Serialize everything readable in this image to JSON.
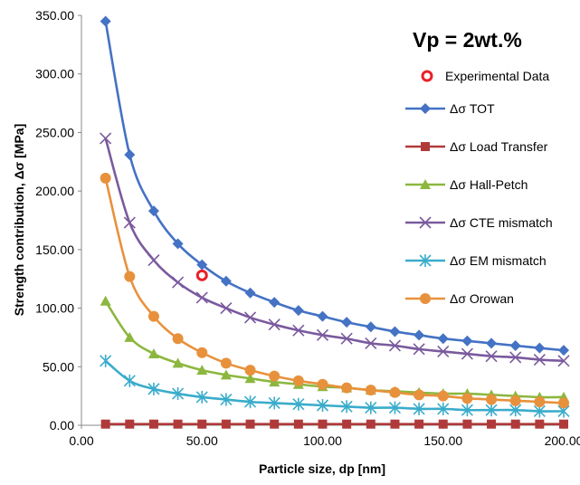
{
  "chart_data": {
    "type": "line",
    "annotation": "Vp = 2wt.%",
    "xlabel": "Particle size, dp [nm]",
    "ylabel": "Strength contribution, Δσ [MPa]",
    "xlim": [
      0,
      200
    ],
    "ylim": [
      0,
      350
    ],
    "x_ticks": [
      "0.00",
      "50.00",
      "100.00",
      "150.00",
      "200.00"
    ],
    "y_ticks": [
      "0.00",
      "50.00",
      "100.00",
      "150.00",
      "200.00",
      "250.00",
      "300.00",
      "350.00"
    ],
    "grid": false,
    "legend_position": "right",
    "x": [
      10,
      20,
      30,
      40,
      50,
      60,
      70,
      80,
      90,
      100,
      110,
      120,
      130,
      140,
      150,
      160,
      170,
      180,
      190,
      200
    ],
    "experimental": {
      "name": "Experimental Data",
      "x": 50,
      "y": 128,
      "color": "#e8202a"
    },
    "series": [
      {
        "name": "Δσ TOT",
        "color": "#4472c4",
        "marker": "diamond",
        "values": [
          345,
          231,
          183,
          155,
          137,
          123,
          113,
          105,
          98,
          93,
          88,
          84,
          80,
          77,
          74,
          72,
          70,
          68,
          66,
          64
        ]
      },
      {
        "name": "Δσ Load Transfer",
        "color": "#b03a3a",
        "marker": "square",
        "values": [
          1,
          1,
          1,
          1,
          1,
          1,
          1,
          1,
          1,
          1,
          1,
          1,
          1,
          1,
          1,
          1,
          1,
          1,
          1,
          1
        ]
      },
      {
        "name": "Δσ Hall-Petch",
        "color": "#8cb73f",
        "marker": "triangle",
        "values": [
          106,
          75,
          61,
          53,
          47,
          43,
          40,
          37,
          35,
          33,
          32,
          30,
          29,
          28,
          27,
          27,
          26,
          25,
          24,
          24
        ]
      },
      {
        "name": "Δσ CTE mismatch",
        "color": "#7a5a9e",
        "marker": "x",
        "values": [
          245,
          173,
          141,
          122,
          109,
          100,
          92,
          86,
          81,
          77,
          74,
          70,
          68,
          65,
          63,
          61,
          59,
          58,
          56,
          55
        ]
      },
      {
        "name": "Δσ EM mismatch",
        "color": "#3aaccb",
        "marker": "star",
        "values": [
          55,
          38,
          31,
          27,
          24,
          22,
          20,
          19,
          18,
          17,
          16,
          15,
          15,
          14,
          14,
          13,
          13,
          13,
          12,
          12
        ]
      },
      {
        "name": "Δσ Orowan",
        "color": "#e8913c",
        "marker": "circle",
        "values": [
          211,
          127,
          93,
          74,
          62,
          53,
          47,
          42,
          38,
          35,
          32,
          30,
          28,
          26,
          25,
          23,
          22,
          21,
          20,
          19
        ]
      }
    ]
  }
}
